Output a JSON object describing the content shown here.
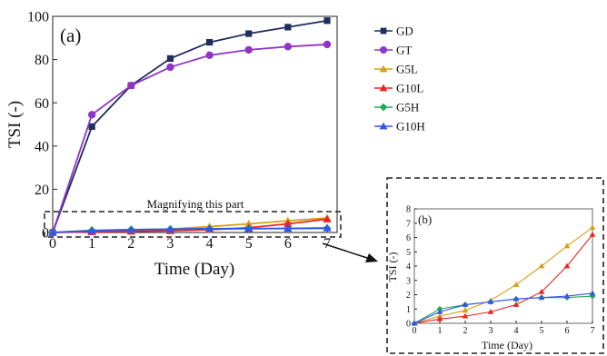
{
  "figure": {
    "annotation": "Magnifying this part"
  },
  "chart_data": [
    {
      "panel_label": "(a)",
      "type": "line",
      "xlabel": "Time (Day)",
      "ylabel": "TSI (-)",
      "xlim": [
        0,
        7
      ],
      "ylim": [
        0,
        100
      ],
      "xticks": [
        "0",
        "1",
        "2",
        "3",
        "4",
        "5",
        "6",
        "7"
      ],
      "yticks": [
        "0",
        "20",
        "40",
        "60",
        "80",
        "100"
      ],
      "grid": false,
      "legend_position": "right",
      "x": [
        0,
        1,
        2,
        3,
        4,
        5,
        6,
        7
      ],
      "series": [
        {
          "name": "GD",
          "color": "#1f2d5c",
          "marker": "square",
          "values": [
            0,
            49.0,
            68.0,
            80.5,
            88.0,
            92.0,
            95.0,
            98.0
          ]
        },
        {
          "name": "GT",
          "color": "#8f35c9",
          "marker": "circle",
          "values": [
            0,
            54.5,
            68.0,
            76.5,
            82.0,
            84.5,
            86.0,
            87.0
          ]
        },
        {
          "name": "G5L",
          "color": "#d4a017",
          "marker": "triangle",
          "values": [
            0,
            0.5,
            0.9,
            1.6,
            2.7,
            4.0,
            5.4,
            6.7
          ]
        },
        {
          "name": "G10L",
          "color": "#ee2222",
          "marker": "triangle",
          "values": [
            0,
            0.3,
            0.5,
            0.8,
            1.3,
            2.2,
            4.0,
            6.2
          ]
        },
        {
          "name": "G5H",
          "color": "#22aa55",
          "marker": "diamond",
          "values": [
            0,
            1.0,
            1.3,
            1.5,
            1.7,
            1.8,
            1.8,
            1.9
          ]
        },
        {
          "name": "G10H",
          "color": "#3355ee",
          "marker": "triangle",
          "values": [
            0,
            0.8,
            1.3,
            1.5,
            1.7,
            1.8,
            1.9,
            2.1
          ]
        }
      ]
    },
    {
      "panel_label": "(b)",
      "type": "line",
      "xlabel": "Time (Day)",
      "ylabel": "TSI (-)",
      "xlim": [
        0,
        7
      ],
      "ylim": [
        0,
        8
      ],
      "xticks": [
        "0",
        "1",
        "2",
        "3",
        "4",
        "5",
        "6",
        "7"
      ],
      "yticks": [
        "0",
        "1",
        "2",
        "3",
        "4",
        "5",
        "6",
        "7",
        "8"
      ],
      "grid": false,
      "x": [
        0,
        1,
        2,
        3,
        4,
        5,
        6,
        7
      ],
      "series": [
        {
          "name": "G5L",
          "color": "#d4a017",
          "marker": "triangle",
          "values": [
            0,
            0.5,
            0.9,
            1.6,
            2.7,
            4.0,
            5.4,
            6.7
          ]
        },
        {
          "name": "G10L",
          "color": "#ee2222",
          "marker": "triangle",
          "values": [
            0,
            0.3,
            0.5,
            0.8,
            1.3,
            2.2,
            4.0,
            6.2
          ]
        },
        {
          "name": "G5H",
          "color": "#22aa55",
          "marker": "diamond",
          "values": [
            0,
            1.0,
            1.3,
            1.5,
            1.7,
            1.8,
            1.8,
            1.9
          ]
        },
        {
          "name": "G10H",
          "color": "#3355ee",
          "marker": "triangle",
          "values": [
            0,
            0.8,
            1.3,
            1.5,
            1.7,
            1.8,
            1.9,
            2.1
          ]
        }
      ]
    }
  ]
}
